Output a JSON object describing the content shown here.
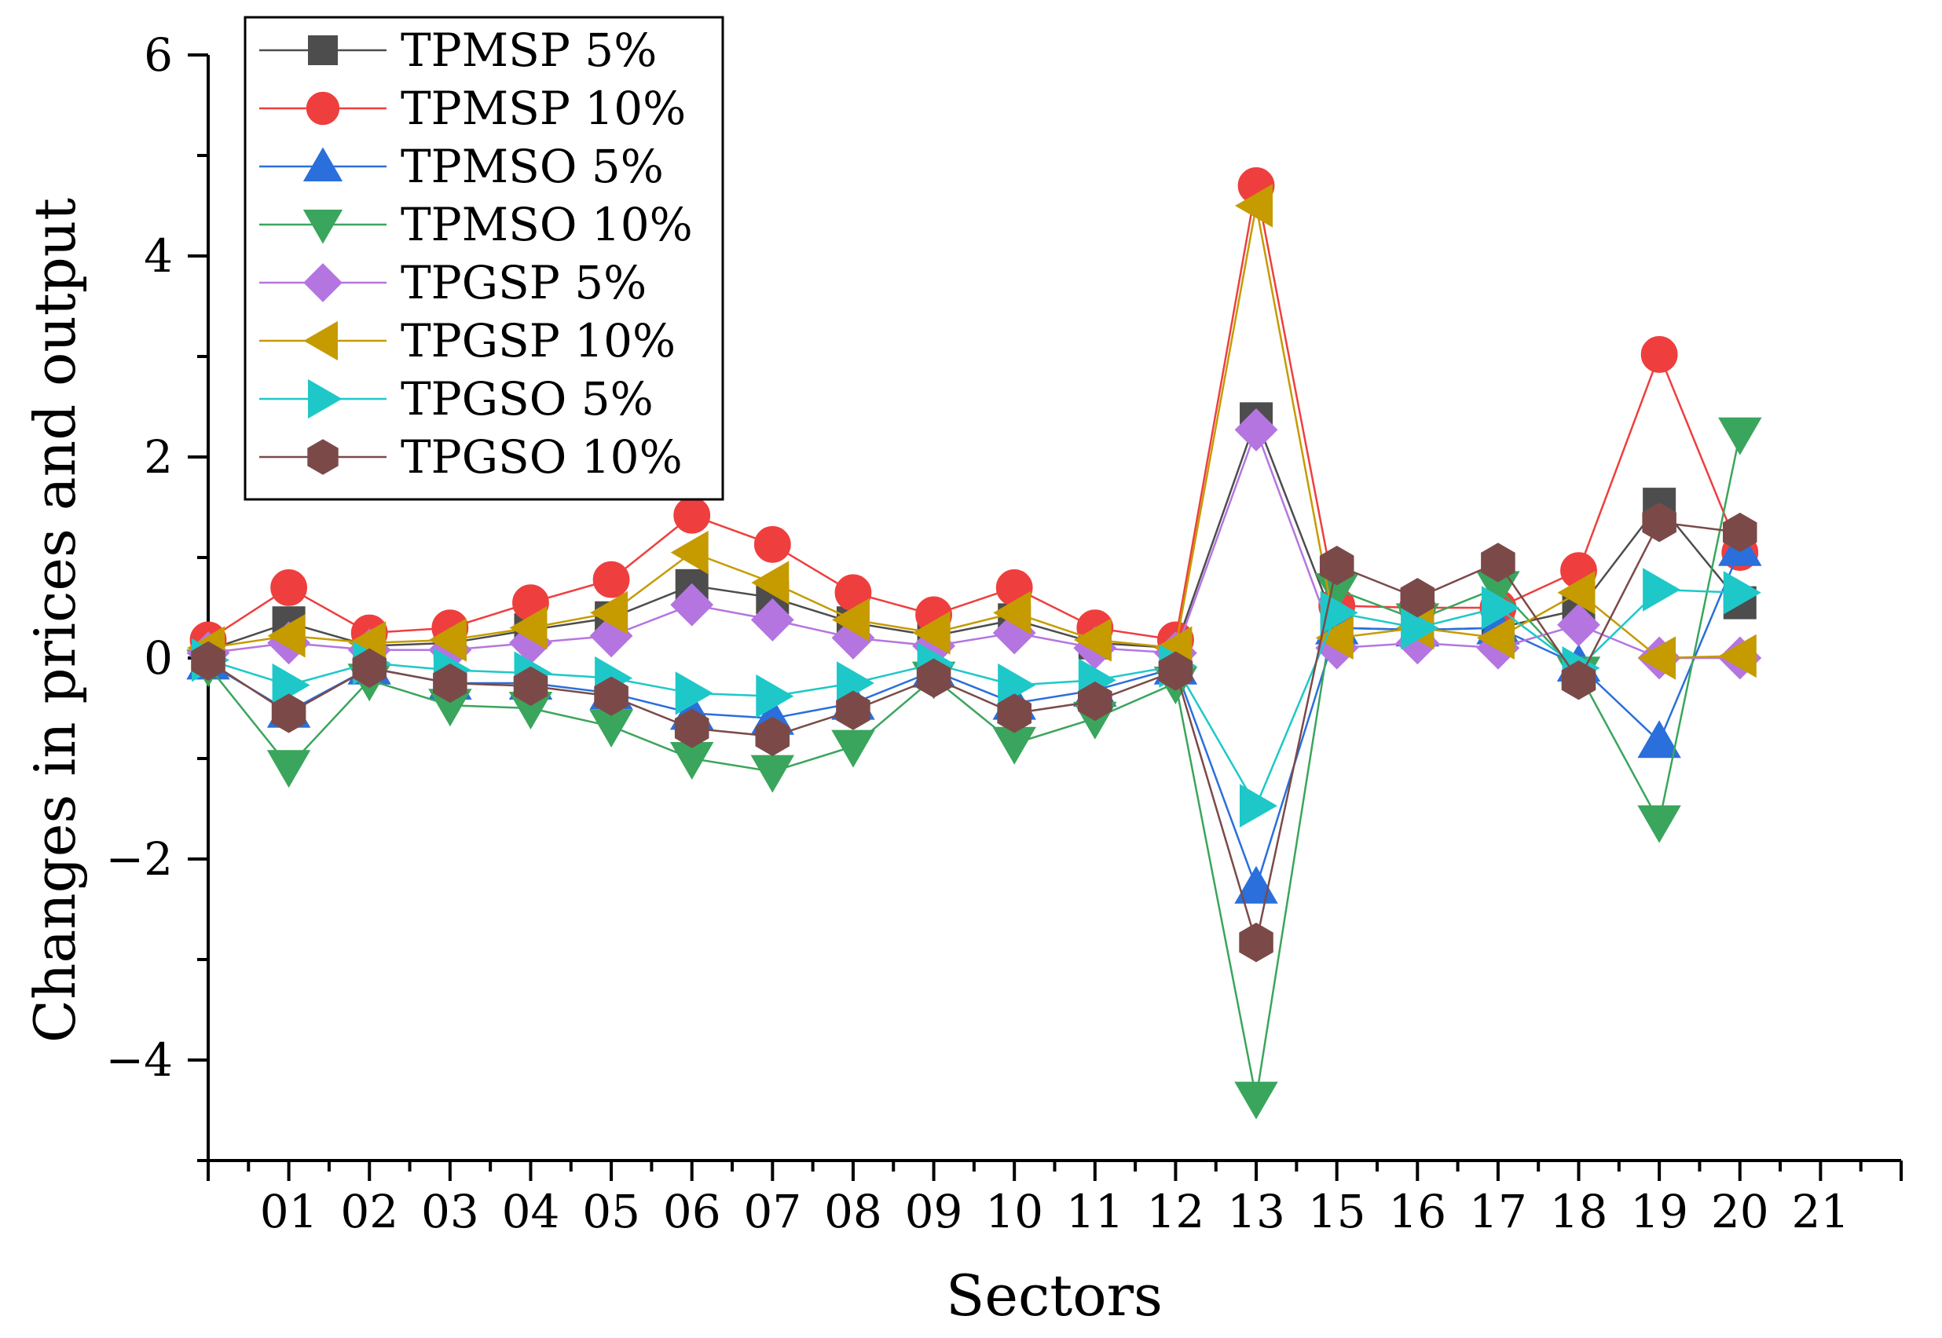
{
  "chart_data": {
    "type": "line",
    "title": "",
    "xlabel": "Sectors",
    "ylabel": "Changes in prices and output",
    "ylim": [
      -5,
      6
    ],
    "yticks": [
      -4,
      -2,
      0,
      2,
      4,
      6
    ],
    "xlim": [
      0,
      21
    ],
    "xtick_labels": [
      {
        "pos": 1,
        "label": "01"
      },
      {
        "pos": 2,
        "label": "02"
      },
      {
        "pos": 3,
        "label": "03"
      },
      {
        "pos": 4,
        "label": "04"
      },
      {
        "pos": 5,
        "label": "05"
      },
      {
        "pos": 6,
        "label": "06"
      },
      {
        "pos": 7,
        "label": "07"
      },
      {
        "pos": 8,
        "label": "08"
      },
      {
        "pos": 9,
        "label": "09"
      },
      {
        "pos": 10,
        "label": "10"
      },
      {
        "pos": 11,
        "label": "11"
      },
      {
        "pos": 12,
        "label": "12"
      },
      {
        "pos": 13,
        "label": "13"
      },
      {
        "pos": 14,
        "label": "15"
      },
      {
        "pos": 15,
        "label": "16"
      },
      {
        "pos": 16,
        "label": "17"
      },
      {
        "pos": 17,
        "label": "18"
      },
      {
        "pos": 18,
        "label": "19"
      },
      {
        "pos": 19,
        "label": "20"
      },
      {
        "pos": 20,
        "label": "21"
      }
    ],
    "x": [
      0,
      1,
      2,
      3,
      4,
      5,
      6,
      7,
      8,
      9,
      10,
      11,
      12,
      13,
      14,
      15,
      16,
      17,
      18,
      19
    ],
    "legend_position": "top-left",
    "series": [
      {
        "name": "TPMSP 5%",
        "color": "#4d4d4d",
        "marker": "square",
        "values": [
          0.08,
          0.35,
          0.12,
          0.15,
          0.28,
          0.4,
          0.72,
          0.6,
          0.35,
          0.22,
          0.38,
          0.15,
          0.1,
          2.38,
          0.3,
          0.28,
          0.3,
          0.48,
          1.53,
          0.55
        ]
      },
      {
        "name": "TPMSP 10%",
        "color": "#ef3e3e",
        "marker": "circle",
        "values": [
          0.18,
          0.7,
          0.25,
          0.3,
          0.55,
          0.78,
          1.42,
          1.13,
          0.65,
          0.43,
          0.7,
          0.3,
          0.18,
          4.7,
          0.52,
          0.5,
          0.5,
          0.87,
          3.02,
          1.05
        ]
      },
      {
        "name": "TPMSO 5%",
        "color": "#2a6fdb",
        "marker": "triangle-up",
        "values": [
          -0.05,
          -0.53,
          -0.1,
          -0.25,
          -0.25,
          -0.35,
          -0.55,
          -0.6,
          -0.45,
          -0.13,
          -0.45,
          -0.32,
          -0.1,
          -2.28,
          0.3,
          0.28,
          0.3,
          -0.07,
          -0.83,
          1.08
        ]
      },
      {
        "name": "TPMSO 10%",
        "color": "#3aa55c",
        "marker": "triangle-down",
        "values": [
          -0.08,
          -1.08,
          -0.22,
          -0.47,
          -0.5,
          -0.68,
          -1.0,
          -1.13,
          -0.88,
          -0.2,
          -0.85,
          -0.6,
          -0.25,
          -4.38,
          0.68,
          0.38,
          0.7,
          -0.15,
          -1.63,
          2.23
        ]
      },
      {
        "name": "TPGSP 5%",
        "color": "#b575e0",
        "marker": "diamond",
        "values": [
          0.05,
          0.15,
          0.08,
          0.08,
          0.15,
          0.22,
          0.53,
          0.38,
          0.2,
          0.12,
          0.25,
          0.1,
          0.05,
          2.27,
          0.1,
          0.15,
          0.1,
          0.33,
          0.0,
          0.0
        ]
      },
      {
        "name": "TPGSP 10%",
        "color": "#c59b00",
        "marker": "triangle-left",
        "values": [
          0.1,
          0.22,
          0.15,
          0.18,
          0.3,
          0.45,
          1.05,
          0.75,
          0.38,
          0.25,
          0.45,
          0.18,
          0.1,
          4.5,
          0.2,
          0.3,
          0.2,
          0.65,
          0.0,
          0.02
        ]
      },
      {
        "name": "TPGSO 5%",
        "color": "#1ec8c8",
        "marker": "triangle-right",
        "values": [
          -0.02,
          -0.27,
          -0.05,
          -0.12,
          -0.15,
          -0.2,
          -0.35,
          -0.38,
          -0.25,
          -0.06,
          -0.27,
          -0.22,
          -0.08,
          -1.47,
          0.45,
          0.3,
          0.5,
          -0.1,
          0.68,
          0.65
        ]
      },
      {
        "name": "TPGSO 10%",
        "color": "#7b4a48",
        "marker": "hexagon",
        "values": [
          -0.03,
          -0.55,
          -0.1,
          -0.25,
          -0.28,
          -0.38,
          -0.7,
          -0.78,
          -0.52,
          -0.2,
          -0.55,
          -0.43,
          -0.13,
          -2.83,
          0.92,
          0.6,
          0.95,
          -0.22,
          1.35,
          1.25
        ]
      }
    ]
  }
}
